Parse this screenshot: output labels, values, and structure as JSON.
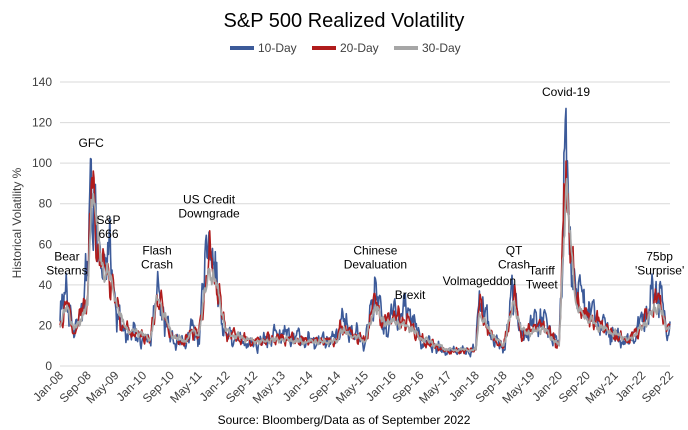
{
  "chart_data": {
    "type": "line",
    "title": "S&P 500 Realized Volatility",
    "ylabel": "Historical Volatility %",
    "xlabel": "",
    "ylim": [
      0,
      140
    ],
    "yticks": [
      0,
      20,
      40,
      60,
      80,
      100,
      120,
      140
    ],
    "x_range": [
      "Jan-08",
      "Sep-22"
    ],
    "xticks": [
      "Jan-08",
      "Sep-08",
      "May-09",
      "Jan-10",
      "Sep-10",
      "May-11",
      "Jan-12",
      "Sep-12",
      "May-13",
      "Jan-14",
      "Sep-14",
      "May-15",
      "Jan-16",
      "Sep-16",
      "May-17",
      "Jan-18",
      "Sep-18",
      "May-19",
      "Jan-20",
      "Sep-20",
      "May-21",
      "Jan-22",
      "Sep-22"
    ],
    "grid": "horizontal",
    "legend_position": "top",
    "series": [
      {
        "name": "10-Day",
        "color": "#3c5a99"
      },
      {
        "name": "20-Day",
        "color": "#b01c1c"
      },
      {
        "name": "30-Day",
        "color": "#a6a6a6"
      }
    ],
    "anchors": [
      {
        "x": "Jan-08",
        "v10": 22,
        "v20": 20,
        "v30": 19
      },
      {
        "x": "Mar-08",
        "v10": 38,
        "v20": 32,
        "v30": 30
      },
      {
        "x": "May-08",
        "v10": 14,
        "v20": 16,
        "v30": 18
      },
      {
        "x": "Jul-08",
        "v10": 28,
        "v20": 25,
        "v30": 23
      },
      {
        "x": "Sep-08",
        "v10": 45,
        "v20": 35,
        "v30": 30
      },
      {
        "x": "Oct-08",
        "v10": 102,
        "v20": 89,
        "v30": 82
      },
      {
        "x": "Nov-08",
        "v10": 85,
        "v20": 80,
        "v30": 80
      },
      {
        "x": "Dec-08",
        "v10": 55,
        "v20": 60,
        "v30": 62
      },
      {
        "x": "Jan-09",
        "v10": 48,
        "v20": 50,
        "v30": 50
      },
      {
        "x": "Mar-09",
        "v10": 55,
        "v20": 48,
        "v30": 45
      },
      {
        "x": "May-09",
        "v10": 30,
        "v20": 32,
        "v30": 33
      },
      {
        "x": "Jul-09",
        "v10": 18,
        "v20": 20,
        "v30": 22
      },
      {
        "x": "Sep-09",
        "v10": 16,
        "v20": 17,
        "v30": 17
      },
      {
        "x": "Jan-10",
        "v10": 14,
        "v20": 15,
        "v30": 16
      },
      {
        "x": "Mar-10",
        "v10": 12,
        "v20": 13,
        "v30": 13
      },
      {
        "x": "May-10",
        "v10": 38,
        "v20": 35,
        "v30": 33
      },
      {
        "x": "Jul-10",
        "v10": 25,
        "v20": 26,
        "v30": 26
      },
      {
        "x": "Sep-10",
        "v10": 14,
        "v20": 15,
        "v30": 16
      },
      {
        "x": "Jan-11",
        "v10": 10,
        "v20": 11,
        "v30": 12
      },
      {
        "x": "Mar-11",
        "v10": 20,
        "v20": 18,
        "v30": 17
      },
      {
        "x": "May-11",
        "v10": 13,
        "v20": 14,
        "v30": 15
      },
      {
        "x": "Aug-11",
        "v10": 66,
        "v20": 55,
        "v30": 48
      },
      {
        "x": "Oct-11",
        "v10": 40,
        "v20": 42,
        "v30": 40
      },
      {
        "x": "Jan-12",
        "v10": 15,
        "v20": 16,
        "v30": 17
      },
      {
        "x": "Sep-12",
        "v10": 11,
        "v20": 12,
        "v30": 12
      },
      {
        "x": "May-13",
        "v10": 16,
        "v20": 14,
        "v30": 13
      },
      {
        "x": "Jan-14",
        "v10": 12,
        "v20": 12,
        "v30": 12
      },
      {
        "x": "Sep-14",
        "v10": 14,
        "v20": 13,
        "v30": 12
      },
      {
        "x": "Oct-14",
        "v10": 23,
        "v20": 20,
        "v30": 18
      },
      {
        "x": "May-15",
        "v10": 11,
        "v20": 12,
        "v30": 12
      },
      {
        "x": "Aug-15",
        "v10": 43,
        "v20": 34,
        "v30": 30
      },
      {
        "x": "Oct-15",
        "v10": 18,
        "v20": 20,
        "v30": 22
      },
      {
        "x": "Jan-16",
        "v10": 25,
        "v20": 24,
        "v30": 22
      },
      {
        "x": "Jun-16",
        "v10": 28,
        "v20": 22,
        "v30": 19
      },
      {
        "x": "Sep-16",
        "v10": 12,
        "v20": 13,
        "v30": 14
      },
      {
        "x": "May-17",
        "v10": 7,
        "v20": 7,
        "v30": 8
      },
      {
        "x": "Jan-18",
        "v10": 8,
        "v20": 8,
        "v30": 8
      },
      {
        "x": "Feb-18",
        "v10": 37,
        "v20": 30,
        "v30": 26
      },
      {
        "x": "May-18",
        "v10": 15,
        "v20": 16,
        "v30": 17
      },
      {
        "x": "Sep-18",
        "v10": 8,
        "v20": 9,
        "v30": 10
      },
      {
        "x": "Dec-18",
        "v10": 40,
        "v20": 35,
        "v30": 32
      },
      {
        "x": "Feb-19",
        "v10": 14,
        "v20": 16,
        "v30": 18
      },
      {
        "x": "May-19",
        "v10": 20,
        "v20": 18,
        "v30": 16
      },
      {
        "x": "Aug-19",
        "v10": 24,
        "v20": 21,
        "v30": 19
      },
      {
        "x": "Jan-20",
        "v10": 10,
        "v20": 10,
        "v30": 10
      },
      {
        "x": "Mar-20",
        "v10": 127,
        "v20": 101,
        "v30": 88
      },
      {
        "x": "Apr-20",
        "v10": 55,
        "v20": 62,
        "v30": 66
      },
      {
        "x": "Jun-20",
        "v10": 38,
        "v20": 32,
        "v30": 30
      },
      {
        "x": "Sep-20",
        "v10": 28,
        "v20": 25,
        "v30": 23
      },
      {
        "x": "Jan-21",
        "v10": 22,
        "v20": 20,
        "v30": 19
      },
      {
        "x": "May-21",
        "v10": 14,
        "v20": 15,
        "v30": 16
      },
      {
        "x": "Sep-21",
        "v10": 11,
        "v20": 12,
        "v30": 13
      },
      {
        "x": "Jan-22",
        "v10": 22,
        "v20": 20,
        "v30": 19
      },
      {
        "x": "Mar-22",
        "v10": 28,
        "v20": 26,
        "v30": 25
      },
      {
        "x": "Jun-22",
        "v10": 40,
        "v20": 33,
        "v30": 30
      },
      {
        "x": "Aug-22",
        "v10": 15,
        "v20": 17,
        "v30": 18
      },
      {
        "x": "Sep-22",
        "v10": 22,
        "v20": 20,
        "v30": 19
      }
    ],
    "annotations": [
      {
        "lines": [
          "Bear",
          "Stearns"
        ],
        "x": "Mar-08",
        "y": 52
      },
      {
        "lines": [
          "GFC"
        ],
        "x": "Oct-08",
        "y": 108
      },
      {
        "lines": [
          "S&P",
          "666"
        ],
        "x": "Mar-09",
        "y": 70
      },
      {
        "lines": [
          "Flash",
          "Crash"
        ],
        "x": "May-10",
        "y": 55
      },
      {
        "lines": [
          "US Credit",
          "Downgrade"
        ],
        "x": "Aug-11",
        "y": 80
      },
      {
        "lines": [
          "Chinese",
          "Devaluation"
        ],
        "x": "Aug-15",
        "y": 55
      },
      {
        "lines": [
          "Brexit"
        ],
        "x": "Jun-16",
        "y": 33
      },
      {
        "lines": [
          "Volmageddon"
        ],
        "x": "Feb-18",
        "y": 40
      },
      {
        "lines": [
          "QT",
          "Crash"
        ],
        "x": "Dec-18",
        "y": 55
      },
      {
        "lines": [
          "Tariff",
          "Tweet"
        ],
        "x": "Aug-19",
        "y": 45
      },
      {
        "lines": [
          "Covid-19"
        ],
        "x": "Mar-20",
        "y": 133
      },
      {
        "lines": [
          "75bp",
          "'Surprise'"
        ],
        "x": "Jun-22",
        "y": 52
      }
    ],
    "source": "Source: Bloomberg/Data as of September 2022"
  }
}
